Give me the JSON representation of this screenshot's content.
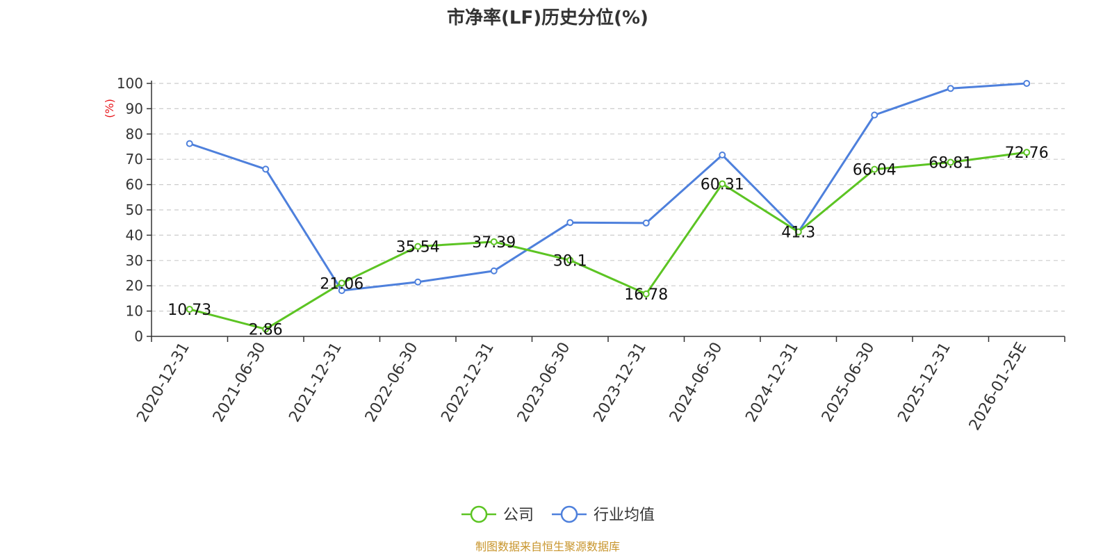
{
  "chart_data": {
    "type": "line",
    "title": "市净率(LF)历史分位(%)",
    "ylabel": "(%)",
    "xlabel": "",
    "ylim": [
      0,
      100
    ],
    "yticks": [
      0,
      10,
      20,
      30,
      40,
      50,
      60,
      70,
      80,
      90,
      100
    ],
    "grid": true,
    "legend_position": "bottom-center",
    "categories": [
      "2020-12-31",
      "2021-06-30",
      "2021-12-31",
      "2022-06-30",
      "2022-12-31",
      "2023-06-30",
      "2023-12-31",
      "2024-06-30",
      "2024-12-31",
      "2025-06-30",
      "2025-12-31",
      "2026-01-25E"
    ],
    "series": [
      {
        "name": "公司",
        "color": "#5cc423",
        "values": [
          10.73,
          2.86,
          21.06,
          35.54,
          37.39,
          30.1,
          16.78,
          60.31,
          41.3,
          66.04,
          68.81,
          72.76
        ],
        "data_labels": [
          "10.73",
          "2.86",
          "21.06",
          "35.54",
          "37.39",
          "30.1",
          "16.78",
          "60.31",
          "41.3",
          "66.04",
          "68.81",
          "72.76"
        ]
      },
      {
        "name": "行业均值",
        "color": "#4e80dc",
        "values": [
          76.2,
          66.1,
          18.1,
          21.5,
          25.9,
          45.0,
          44.8,
          71.7,
          41.3,
          87.5,
          98.0,
          100.0
        ]
      }
    ]
  },
  "colors": {
    "axis": "#333333",
    "grid": "#cccccc",
    "unit_label": "#e8161b",
    "source": "#c8952c"
  },
  "source_text": "制图数据来自恒生聚源数据库"
}
